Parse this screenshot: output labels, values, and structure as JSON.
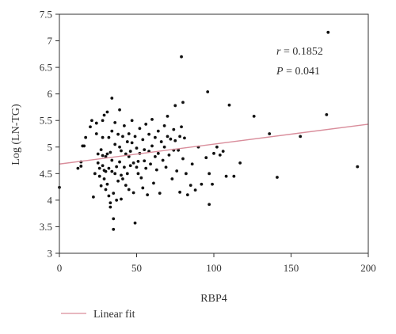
{
  "chart_data": {
    "type": "scatter",
    "xlabel": "RBP4",
    "ylabel": "Log (LN-TG)",
    "xlim": [
      0,
      200
    ],
    "ylim": [
      3,
      7.5
    ],
    "x_ticks": [
      0,
      50,
      100,
      150,
      200
    ],
    "y_ticks": [
      3,
      3.5,
      4,
      4.5,
      5,
      5.5,
      6,
      6.5,
      7,
      7.5
    ],
    "grid": false,
    "legend": "bottom-left",
    "annotations": {
      "r_label": "r",
      "r_value": " = 0.1852",
      "p_label": "P",
      "p_value": " = 0.041"
    },
    "colors": {
      "points": "#111111",
      "fit_line": "#d98d9b",
      "axes": "#333333"
    },
    "series": [
      {
        "type": "scatter",
        "points": [
          [
            0,
            4.24
          ],
          [
            12,
            4.6
          ],
          [
            14,
            4.72
          ],
          [
            14,
            4.64
          ],
          [
            15,
            5.02
          ],
          [
            16,
            5.02
          ],
          [
            17,
            5.18
          ],
          [
            20,
            5.38
          ],
          [
            21,
            5.5
          ],
          [
            22,
            4.06
          ],
          [
            23,
            4.5
          ],
          [
            24,
            5.25
          ],
          [
            24,
            5.45
          ],
          [
            25,
            4.87
          ],
          [
            25,
            4.7
          ],
          [
            26,
            4.6
          ],
          [
            26,
            4.45
          ],
          [
            27,
            4.95
          ],
          [
            27,
            4.27
          ],
          [
            28,
            5.5
          ],
          [
            28,
            5.18
          ],
          [
            28,
            4.84
          ],
          [
            28,
            4.65
          ],
          [
            29,
            5.6
          ],
          [
            29,
            4.56
          ],
          [
            29,
            4.4
          ],
          [
            30,
            4.82
          ],
          [
            30,
            4.54
          ],
          [
            30,
            4.2
          ],
          [
            31,
            5.66
          ],
          [
            31,
            4.87
          ],
          [
            31,
            4.3
          ],
          [
            32,
            5.18
          ],
          [
            32,
            4.6
          ],
          [
            32,
            4.08
          ],
          [
            33,
            3.95
          ],
          [
            33,
            3.87
          ],
          [
            33,
            4.9
          ],
          [
            34,
            5.92
          ],
          [
            34,
            5.3
          ],
          [
            34,
            4.75
          ],
          [
            34,
            4.54
          ],
          [
            35,
            3.65
          ],
          [
            35,
            3.45
          ],
          [
            35,
            4.13
          ],
          [
            36,
            5.46
          ],
          [
            36,
            5.05
          ],
          [
            36,
            4.5
          ],
          [
            37,
            4.63
          ],
          [
            37,
            4.0
          ],
          [
            38,
            5.24
          ],
          [
            38,
            4.36
          ],
          [
            39,
            5.7
          ],
          [
            39,
            5.0
          ],
          [
            39,
            4.72
          ],
          [
            40,
            4.93
          ],
          [
            40,
            4.47
          ],
          [
            40,
            4.02
          ],
          [
            41,
            5.2
          ],
          [
            41,
            4.4
          ],
          [
            42,
            5.4
          ],
          [
            42,
            4.62
          ],
          [
            43,
            4.87
          ],
          [
            43,
            4.28
          ],
          [
            44,
            5.1
          ],
          [
            44,
            4.5
          ],
          [
            45,
            5.25
          ],
          [
            45,
            4.82
          ],
          [
            45,
            4.2
          ],
          [
            46,
            4.92
          ],
          [
            46,
            4.65
          ],
          [
            47,
            5.5
          ],
          [
            47,
            5.08
          ],
          [
            48,
            4.7
          ],
          [
            48,
            4.14
          ],
          [
            49,
            3.57
          ],
          [
            49,
            5.2
          ],
          [
            50,
            4.98
          ],
          [
            50,
            4.62
          ],
          [
            51,
            4.5
          ],
          [
            51,
            4.73
          ],
          [
            52,
            5.35
          ],
          [
            52,
            4.88
          ],
          [
            53,
            4.42
          ],
          [
            54,
            5.14
          ],
          [
            54,
            4.23
          ],
          [
            55,
            4.95
          ],
          [
            55,
            4.74
          ],
          [
            56,
            5.43
          ],
          [
            56,
            4.6
          ],
          [
            57,
            4.1
          ],
          [
            58,
            5.24
          ],
          [
            58,
            4.92
          ],
          [
            59,
            4.68
          ],
          [
            60,
            5.52
          ],
          [
            60,
            5.02
          ],
          [
            61,
            4.32
          ],
          [
            62,
            5.18
          ],
          [
            62,
            4.82
          ],
          [
            63,
            4.57
          ],
          [
            64,
            5.3
          ],
          [
            64,
            4.88
          ],
          [
            65,
            4.13
          ],
          [
            66,
            5.1
          ],
          [
            67,
            4.75
          ],
          [
            68,
            5.4
          ],
          [
            68,
            5.0
          ],
          [
            69,
            4.62
          ],
          [
            70,
            5.58
          ],
          [
            70,
            5.2
          ],
          [
            71,
            4.85
          ],
          [
            72,
            5.15
          ],
          [
            73,
            4.4
          ],
          [
            74,
            5.33
          ],
          [
            74,
            4.94
          ],
          [
            75,
            5.78
          ],
          [
            75,
            5.12
          ],
          [
            76,
            4.55
          ],
          [
            77,
            4.94
          ],
          [
            78,
            5.2
          ],
          [
            78,
            4.15
          ],
          [
            79,
            6.7
          ],
          [
            79,
            5.38
          ],
          [
            80,
            5.84
          ],
          [
            80,
            4.78
          ],
          [
            81,
            5.17
          ],
          [
            82,
            4.5
          ],
          [
            83,
            4.1
          ],
          [
            85,
            4.28
          ],
          [
            86,
            4.68
          ],
          [
            88,
            4.19
          ],
          [
            90,
            5.0
          ],
          [
            92,
            4.3
          ],
          [
            95,
            4.8
          ],
          [
            96,
            6.04
          ],
          [
            97,
            4.5
          ],
          [
            97,
            3.92
          ],
          [
            99,
            4.3
          ],
          [
            100,
            4.88
          ],
          [
            102,
            5.0
          ],
          [
            104,
            4.85
          ],
          [
            106,
            4.92
          ],
          [
            108,
            4.45
          ],
          [
            110,
            5.79
          ],
          [
            113,
            4.45
          ],
          [
            117,
            4.7
          ],
          [
            126,
            5.58
          ],
          [
            136,
            5.25
          ],
          [
            141,
            4.43
          ],
          [
            156,
            5.2
          ],
          [
            173,
            5.61
          ],
          [
            174,
            7.16
          ],
          [
            193,
            4.63
          ]
        ]
      },
      {
        "name": "Linear fit",
        "type": "line",
        "points": [
          [
            0,
            4.68
          ],
          [
            200,
            5.43
          ]
        ]
      }
    ]
  }
}
